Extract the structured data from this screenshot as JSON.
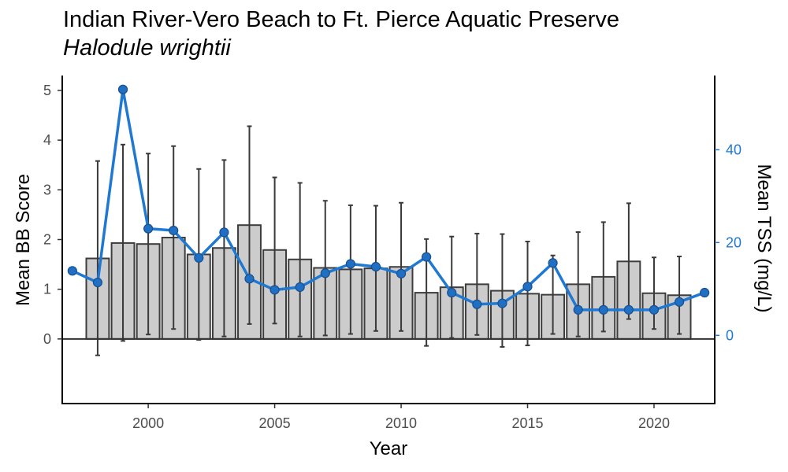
{
  "chart_data": {
    "type": "bar",
    "title": "Indian River-Vero Beach to Ft. Pierce Aquatic Preserve",
    "subtitle": "Halodule wrightii",
    "xlabel": "Year",
    "ylabel": "Mean BB Score",
    "y2label": "Mean TSS (mg/L)",
    "xlim": [
      1996.6,
      2022.4
    ],
    "ylim": [
      -1.3,
      5.3
    ],
    "y2lim": [
      -14.7,
      56.0
    ],
    "x_ticks": [
      2000,
      2005,
      2010,
      2015,
      2020
    ],
    "y_ticks": [
      0,
      1,
      2,
      3,
      4,
      5
    ],
    "y2_ticks": [
      0,
      20,
      40
    ],
    "grid": false,
    "bar_series": {
      "name": "Mean BB Score",
      "color": "#cccccc",
      "edge_color": "#3d3d3d",
      "points": [
        {
          "x": 1998,
          "y": 1.62,
          "lo": -0.33,
          "hi": 3.58
        },
        {
          "x": 1999,
          "y": 1.93,
          "lo": -0.04,
          "hi": 3.91
        },
        {
          "x": 2000,
          "y": 1.91,
          "lo": 0.09,
          "hi": 3.73
        },
        {
          "x": 2001,
          "y": 2.04,
          "lo": 0.2,
          "hi": 3.88
        },
        {
          "x": 2002,
          "y": 1.7,
          "lo": -0.02,
          "hi": 3.42
        },
        {
          "x": 2003,
          "y": 1.83,
          "lo": 0.05,
          "hi": 3.6
        },
        {
          "x": 2004,
          "y": 2.29,
          "lo": 0.3,
          "hi": 4.28
        },
        {
          "x": 2005,
          "y": 1.79,
          "lo": 0.31,
          "hi": 3.25
        },
        {
          "x": 2006,
          "y": 1.6,
          "lo": 0.05,
          "hi": 3.14
        },
        {
          "x": 2007,
          "y": 1.43,
          "lo": 0.07,
          "hi": 2.78
        },
        {
          "x": 2008,
          "y": 1.4,
          "lo": 0.1,
          "hi": 2.69
        },
        {
          "x": 2009,
          "y": 1.42,
          "lo": 0.16,
          "hi": 2.68
        },
        {
          "x": 2010,
          "y": 1.45,
          "lo": 0.16,
          "hi": 2.74
        },
        {
          "x": 2011,
          "y": 0.93,
          "lo": -0.14,
          "hi": 2.01
        },
        {
          "x": 2012,
          "y": 1.04,
          "lo": 0.02,
          "hi": 2.06
        },
        {
          "x": 2013,
          "y": 1.1,
          "lo": 0.08,
          "hi": 2.12
        },
        {
          "x": 2014,
          "y": 0.97,
          "lo": -0.16,
          "hi": 2.11
        },
        {
          "x": 2015,
          "y": 0.91,
          "lo": -0.13,
          "hi": 1.96
        },
        {
          "x": 2016,
          "y": 0.89,
          "lo": 0.1,
          "hi": 1.68
        },
        {
          "x": 2017,
          "y": 1.1,
          "lo": 0.05,
          "hi": 2.15
        },
        {
          "x": 2018,
          "y": 1.25,
          "lo": 0.15,
          "hi": 2.35
        },
        {
          "x": 2019,
          "y": 1.56,
          "lo": 0.4,
          "hi": 2.73
        },
        {
          "x": 2020,
          "y": 0.92,
          "lo": 0.2,
          "hi": 1.64
        },
        {
          "x": 2021,
          "y": 0.88,
          "lo": 0.1,
          "hi": 1.66
        }
      ]
    },
    "line_series": {
      "name": "Mean TSS (mg/L)",
      "axis": "right",
      "color": "#1f78d1",
      "point_fill": "#1f6fc5",
      "point_edge": "#1a4f8a",
      "points": [
        {
          "x": 1997,
          "y": 13.9
        },
        {
          "x": 1998,
          "y": 11.4
        },
        {
          "x": 1999,
          "y": 53.0
        },
        {
          "x": 2000,
          "y": 23.0
        },
        {
          "x": 2001,
          "y": 22.6
        },
        {
          "x": 2002,
          "y": 16.7
        },
        {
          "x": 2003,
          "y": 22.2
        },
        {
          "x": 2004,
          "y": 12.2
        },
        {
          "x": 2005,
          "y": 9.8
        },
        {
          "x": 2006,
          "y": 10.4
        },
        {
          "x": 2007,
          "y": 13.4
        },
        {
          "x": 2008,
          "y": 15.4
        },
        {
          "x": 2009,
          "y": 14.8
        },
        {
          "x": 2010,
          "y": 13.3
        },
        {
          "x": 2011,
          "y": 16.9
        },
        {
          "x": 2012,
          "y": 9.2
        },
        {
          "x": 2013,
          "y": 6.7
        },
        {
          "x": 2014,
          "y": 6.9
        },
        {
          "x": 2015,
          "y": 10.5
        },
        {
          "x": 2016,
          "y": 15.6
        },
        {
          "x": 2017,
          "y": 5.5
        },
        {
          "x": 2018,
          "y": 5.5
        },
        {
          "x": 2019,
          "y": 5.5
        },
        {
          "x": 2020,
          "y": 5.5
        },
        {
          "x": 2021,
          "y": 7.2
        },
        {
          "x": 2022,
          "y": 9.2
        }
      ]
    }
  }
}
